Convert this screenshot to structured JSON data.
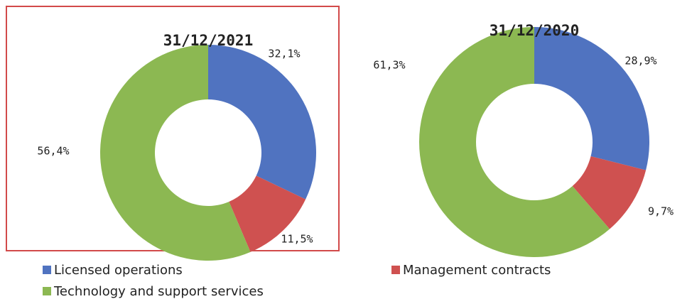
{
  "legend": [
    {
      "name": "Licensed operations",
      "color": "#5073c0"
    },
    {
      "name": "Management contracts",
      "color": "#cf5150"
    },
    {
      "name": "Technology and support services",
      "color": "#8cb852"
    }
  ],
  "chart_data": [
    {
      "type": "pie",
      "donut": true,
      "title": "31/12/2021",
      "values": [
        32.1,
        11.5,
        56.4
      ],
      "value_labels": [
        "32,1%",
        "11,5%",
        "56,4%"
      ]
    },
    {
      "type": "pie",
      "donut": true,
      "title": "31/12/2020",
      "values": [
        28.9,
        9.7,
        61.3
      ],
      "value_labels": [
        "28,9%",
        "9,7%",
        "61,3%"
      ]
    }
  ]
}
